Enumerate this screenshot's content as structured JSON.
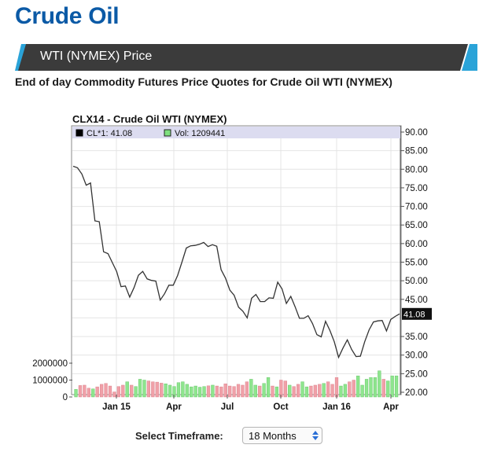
{
  "page": {
    "title": "Crude Oil",
    "banner_title": "WTI (NYMEX) Price",
    "subtitle": "End of day Commodity Futures Price Quotes for Crude Oil WTI (NYMEX)"
  },
  "timeframe": {
    "label": "Select Timeframe:",
    "value": "18 Months"
  },
  "chart_data": {
    "type": "line",
    "title": "CLX14 - Crude Oil WTI (NYMEX)",
    "legend": {
      "price_label": "CL*1: 41.08",
      "volume_label": "Vol: 1209441",
      "placement": "top-left"
    },
    "last_price_label": "41.08",
    "x_tick_labels": [
      "Jan 15",
      "Apr",
      "Jul",
      "Oct",
      "Jan 16",
      "Apr"
    ],
    "price_axis": {
      "min": 20,
      "max": 90,
      "ticks": [
        "90.00",
        "85.00",
        "80.00",
        "75.00",
        "70.00",
        "65.00",
        "60.00",
        "55.00",
        "50.00",
        "45.00",
        "35.00",
        "30.00",
        "25.00",
        "20.00"
      ]
    },
    "volume_axis": {
      "min": 0,
      "max": 2500000,
      "ticks": [
        "2000000",
        "1000000",
        "0"
      ]
    },
    "grid": true,
    "series": [
      {
        "values": [
          80.8,
          80.4,
          78.7,
          75.7,
          76.3,
          66.1,
          65.9,
          57.8,
          57.3,
          54.9,
          52.5,
          48.4,
          48.6,
          45.6,
          48.2,
          51.5,
          52.5,
          50.5,
          50.1,
          49.9,
          44.8,
          46.5,
          48.8,
          48.8,
          51.4,
          55.0,
          58.8,
          59.4,
          59.5,
          59.8,
          60.3,
          59.2,
          59.7,
          59.3,
          53.0,
          50.7,
          47.5,
          46.1,
          42.9,
          41.8,
          40.0,
          45.3,
          46.3,
          44.4,
          44.4,
          45.4,
          45.3,
          49.6,
          47.8,
          43.9,
          45.8,
          43.0,
          39.9,
          39.9,
          40.6,
          38.5,
          35.5,
          34.9,
          39.1,
          36.6,
          33.6,
          29.4,
          31.9,
          34.1,
          31.5,
          29.6,
          29.7,
          33.6,
          36.8,
          38.9,
          39.2,
          39.3,
          36.5,
          39.6,
          40.4,
          41.08
        ]
      },
      {
        "name": "Vol",
        "values": [
          450000,
          680000,
          700000,
          520000,
          480000,
          600000,
          750000,
          800000,
          650000,
          300000,
          620000,
          700000,
          900000,
          700000,
          620000,
          1050000,
          1000000,
          950000,
          900000,
          880000,
          820000,
          780000,
          700000,
          620000,
          850000,
          900000,
          750000,
          600000,
          650000,
          580000,
          620000,
          660000,
          700000,
          650000,
          600000,
          780000,
          650000,
          620000,
          750000,
          700000,
          900000,
          1050000,
          700000,
          650000,
          800000,
          1150000,
          650000,
          600000,
          1000000,
          950000,
          700000,
          620000,
          750000,
          900000,
          600000,
          650000,
          700000,
          750000,
          800000,
          900000,
          750000,
          1150000,
          650000,
          750000,
          900000,
          1000000,
          1250000,
          700000,
          1050000,
          1150000,
          1150000,
          1550000,
          1050000,
          950000,
          1250000,
          1250000
        ]
      }
    ]
  }
}
